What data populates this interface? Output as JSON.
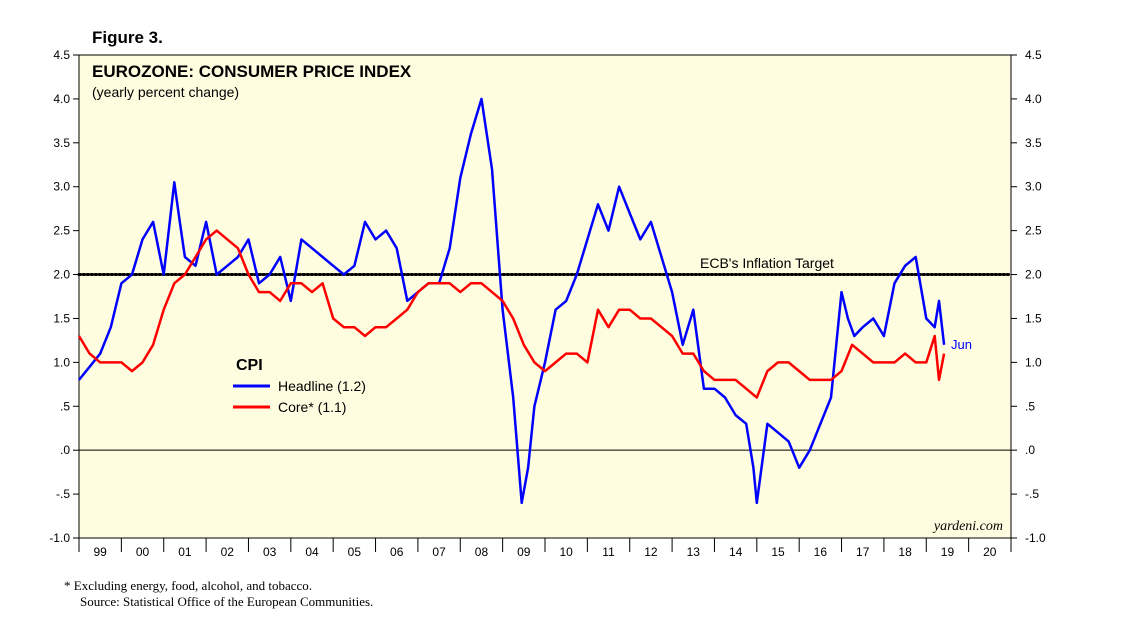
{
  "figure_label": "Figure 3.",
  "footnotes": [
    "*  Excluding energy, food, alcohol, and tobacco.",
    "Source: Statistical Office of the European Communities."
  ],
  "colors": {
    "plot_background": "#FFFDE0",
    "headline": "#0000FF",
    "core": "#FF0000",
    "target": "#000000"
  },
  "chart_data": {
    "type": "line",
    "title": "EUROZONE: CONSUMER PRICE INDEX",
    "subtitle": "(yearly percent change)",
    "ylim": [
      -1.0,
      4.5
    ],
    "xlim": [
      1999.0,
      2021.0
    ],
    "grid": false,
    "y_tick_labels_left": [
      "4.5",
      "4.0",
      "3.5",
      "3.0",
      "2.5",
      "2.0",
      "1.5",
      "1.0",
      ".5",
      ".0",
      "-.5",
      "-1.0"
    ],
    "y_tick_labels_right": [
      "4.5",
      "4.0",
      "3.5",
      "3.0",
      "2.5",
      "2.0",
      "1.5",
      "1.0",
      ".5",
      ".0",
      "-.5",
      "-1.0"
    ],
    "y_tick_values": [
      4.5,
      4.0,
      3.5,
      3.0,
      2.5,
      2.0,
      1.5,
      1.0,
      0.5,
      0.0,
      -0.5,
      -1.0
    ],
    "x_tick_labels": [
      "99",
      "00",
      "01",
      "02",
      "03",
      "04",
      "05",
      "06",
      "07",
      "08",
      "09",
      "10",
      "11",
      "12",
      "13",
      "14",
      "15",
      "16",
      "17",
      "18",
      "19",
      "20"
    ],
    "reference_lines": [
      {
        "y": 2.0,
        "label": "ECB's Inflation Target",
        "style": "dotted"
      },
      {
        "y": 0.0,
        "label": "",
        "style": "solid"
      }
    ],
    "legend": {
      "title": "CPI",
      "placement": "center-left",
      "entries": [
        "Headline (1.2)",
        "Core* (1.1)"
      ]
    },
    "end_annotation": "Jun",
    "watermark": "yardeni.com",
    "series": [
      {
        "name": "Headline (1.2)",
        "x": [
          1999.0,
          1999.25,
          1999.5,
          1999.75,
          2000.0,
          2000.25,
          2000.5,
          2000.75,
          2001.0,
          2001.25,
          2001.38,
          2001.5,
          2001.75,
          2002.0,
          2002.25,
          2002.5,
          2002.75,
          2003.0,
          2003.25,
          2003.5,
          2003.75,
          2004.0,
          2004.25,
          2004.5,
          2004.75,
          2005.0,
          2005.25,
          2005.5,
          2005.75,
          2006.0,
          2006.25,
          2006.5,
          2006.75,
          2007.0,
          2007.25,
          2007.5,
          2007.75,
          2008.0,
          2008.25,
          2008.5,
          2008.75,
          2009.0,
          2009.25,
          2009.45,
          2009.6,
          2009.75,
          2010.0,
          2010.25,
          2010.5,
          2010.75,
          2011.0,
          2011.25,
          2011.5,
          2011.75,
          2012.0,
          2012.25,
          2012.5,
          2012.75,
          2013.0,
          2013.25,
          2013.5,
          2013.75,
          2014.0,
          2014.25,
          2014.5,
          2014.75,
          2014.92,
          2015.0,
          2015.25,
          2015.5,
          2015.75,
          2016.0,
          2016.25,
          2016.5,
          2016.75,
          2017.0,
          2017.15,
          2017.3,
          2017.5,
          2017.75,
          2018.0,
          2018.25,
          2018.5,
          2018.75,
          2019.0,
          2019.2,
          2019.3,
          2019.42
        ],
        "values": [
          0.8,
          0.95,
          1.1,
          1.4,
          1.9,
          2.0,
          2.4,
          2.6,
          2.0,
          3.05,
          2.6,
          2.2,
          2.1,
          2.6,
          2.0,
          2.1,
          2.2,
          2.4,
          1.9,
          2.0,
          2.2,
          1.7,
          2.4,
          2.3,
          2.2,
          2.1,
          2.0,
          2.1,
          2.6,
          2.4,
          2.5,
          2.3,
          1.7,
          1.8,
          1.9,
          1.9,
          2.3,
          3.1,
          3.6,
          4.0,
          3.2,
          1.6,
          0.6,
          -0.6,
          -0.2,
          0.5,
          1.0,
          1.6,
          1.7,
          2.0,
          2.4,
          2.8,
          2.5,
          3.0,
          2.7,
          2.4,
          2.6,
          2.2,
          1.8,
          1.2,
          1.6,
          0.7,
          0.7,
          0.6,
          0.4,
          0.3,
          -0.2,
          -0.6,
          0.3,
          0.2,
          0.1,
          -0.2,
          0.0,
          0.3,
          0.6,
          1.8,
          1.5,
          1.3,
          1.4,
          1.5,
          1.3,
          1.9,
          2.1,
          2.2,
          1.5,
          1.4,
          1.7,
          1.2
        ]
      },
      {
        "name": "Core* (1.1)",
        "x": [
          1999.0,
          1999.25,
          1999.5,
          1999.75,
          2000.0,
          2000.25,
          2000.5,
          2000.75,
          2001.0,
          2001.25,
          2001.5,
          2001.75,
          2002.0,
          2002.25,
          2002.5,
          2002.75,
          2003.0,
          2003.25,
          2003.5,
          2003.75,
          2004.0,
          2004.25,
          2004.5,
          2004.75,
          2005.0,
          2005.25,
          2005.5,
          2005.75,
          2006.0,
          2006.25,
          2006.5,
          2006.75,
          2007.0,
          2007.25,
          2007.5,
          2007.75,
          2008.0,
          2008.25,
          2008.5,
          2008.75,
          2009.0,
          2009.25,
          2009.5,
          2009.75,
          2010.0,
          2010.25,
          2010.5,
          2010.75,
          2011.0,
          2011.25,
          2011.5,
          2011.75,
          2012.0,
          2012.25,
          2012.5,
          2012.75,
          2013.0,
          2013.25,
          2013.5,
          2013.75,
          2014.0,
          2014.25,
          2014.5,
          2014.75,
          2015.0,
          2015.25,
          2015.5,
          2015.75,
          2016.0,
          2016.25,
          2016.5,
          2016.75,
          2017.0,
          2017.25,
          2017.5,
          2017.75,
          2018.0,
          2018.25,
          2018.5,
          2018.75,
          2019.0,
          2019.2,
          2019.3,
          2019.42
        ],
        "values": [
          1.3,
          1.1,
          1.0,
          1.0,
          1.0,
          0.9,
          1.0,
          1.2,
          1.6,
          1.9,
          2.0,
          2.2,
          2.4,
          2.5,
          2.4,
          2.3,
          2.0,
          1.8,
          1.8,
          1.7,
          1.9,
          1.9,
          1.8,
          1.9,
          1.5,
          1.4,
          1.4,
          1.3,
          1.4,
          1.4,
          1.5,
          1.6,
          1.8,
          1.9,
          1.9,
          1.9,
          1.8,
          1.9,
          1.9,
          1.8,
          1.7,
          1.5,
          1.2,
          1.0,
          0.9,
          1.0,
          1.1,
          1.1,
          1.0,
          1.6,
          1.4,
          1.6,
          1.6,
          1.5,
          1.5,
          1.4,
          1.3,
          1.1,
          1.1,
          0.9,
          0.8,
          0.8,
          0.8,
          0.7,
          0.6,
          0.9,
          1.0,
          1.0,
          0.9,
          0.8,
          0.8,
          0.8,
          0.9,
          1.2,
          1.1,
          1.0,
          1.0,
          1.0,
          1.1,
          1.0,
          1.0,
          1.3,
          0.8,
          1.1
        ]
      }
    ]
  }
}
